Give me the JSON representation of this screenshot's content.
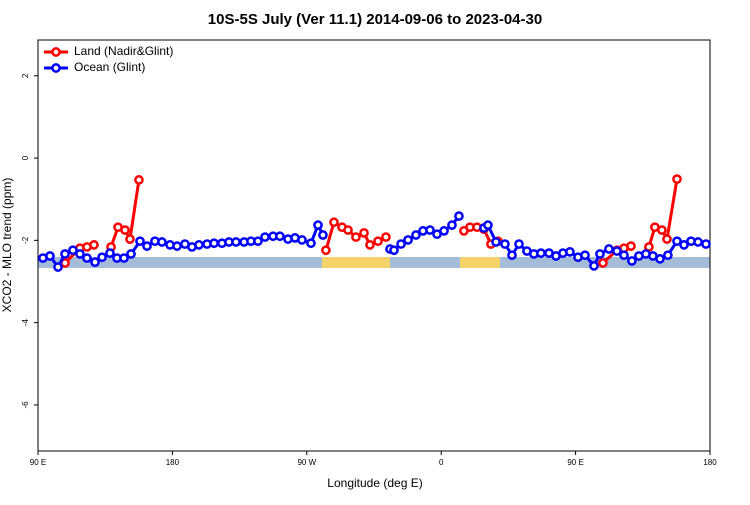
{
  "chart_data": {
    "type": "line",
    "title": "10S-5S July (Ver 11.1)   2014-09-06 to 2023-04-30",
    "x_label": "Longitude (deg E)",
    "y_label": "XCO2 - MLO trend (ppm)",
    "xlim": [
      90,
      540
    ],
    "xticks": [
      {
        "value": 90,
        "label": "90 E"
      },
      180,
      {
        "value": 270,
        "label": "90 W"
      },
      {
        "value": 360,
        "label": "0"
      },
      {
        "value": 450,
        "label": "90 E"
      },
      {
        "value": 540,
        "label": "180"
      }
    ],
    "ylim": [
      -7.12,
      2.87
    ],
    "yticks": [
      -6,
      -4,
      -2,
      0,
      2
    ],
    "legend": "top-left",
    "series": [
      {
        "name": "Land (Nadir&Glint)",
        "color": "#ff0000",
        "x": [
          108.1,
          118.1,
          122.8,
          127.5,
          null,
          138.9,
          143.6,
          148.3,
          151.6,
          157.6,
          null,
          282.8,
          288.2,
          293.6,
          297.6,
          302.9,
          308.3,
          312.3,
          317.7,
          323.0,
          null,
          375.2,
          379.3,
          384.0,
          388.6,
          393.3,
          398.0,
          null,
          468.3,
          477.7,
          482.4,
          487.1,
          null,
          499.1,
          503.1,
          507.8,
          511.2,
          517.9
        ],
        "values": [
          -2.55,
          -2.19,
          -2.16,
          -2.11,
          null,
          -2.16,
          -1.68,
          -1.75,
          -1.97,
          -0.53,
          null,
          -2.24,
          -1.56,
          -1.68,
          -1.75,
          -1.92,
          -1.82,
          -2.11,
          -2.02,
          -1.92,
          null,
          -1.77,
          -1.68,
          -1.68,
          -1.73,
          -2.09,
          -2.02,
          null,
          -2.55,
          -2.24,
          -2.19,
          -2.14,
          null,
          -2.16,
          -1.68,
          -1.75,
          -1.97,
          -0.51
        ]
      },
      {
        "name": "Ocean (Glint)",
        "color": "#0000ff",
        "x": [
          93.3,
          98.0,
          103.4,
          108.1,
          113.4,
          118.1,
          122.8,
          128.2,
          132.9,
          138.2,
          142.9,
          147.6,
          152.3,
          158.3,
          163.0,
          168.3,
          173.0,
          178.4,
          183.1,
          188.4,
          193.1,
          197.8,
          203.2,
          207.9,
          213.2,
          217.9,
          222.6,
          228.0,
          232.6,
          237.3,
          242.0,
          247.4,
          252.0,
          257.4,
          262.1,
          266.8,
          272.8,
          277.5,
          280.8,
          null,
          325.7,
          328.4,
          333.1,
          337.8,
          343.1,
          347.8,
          352.5,
          357.2,
          361.9,
          367.2,
          371.9,
          null,
          388.6,
          391.3,
          396.7,
          402.7,
          407.4,
          412.1,
          417.4,
          422.1,
          426.8,
          432.2,
          436.9,
          441.5,
          446.2,
          451.6,
          456.3,
          462.3,
          466.3,
          472.3,
          477.7,
          482.4,
          487.7,
          492.4,
          497.1,
          501.8,
          506.5,
          511.8,
          517.9,
          522.6,
          527.3,
          532.0,
          537.3
        ],
        "values": [
          -2.43,
          -2.38,
          -2.65,
          -2.33,
          -2.24,
          -2.33,
          -2.43,
          -2.53,
          -2.41,
          -2.31,
          -2.43,
          -2.43,
          -2.33,
          -2.02,
          -2.14,
          -2.02,
          -2.04,
          -2.11,
          -2.14,
          -2.09,
          -2.16,
          -2.11,
          -2.09,
          -2.07,
          -2.07,
          -2.04,
          -2.04,
          -2.04,
          -2.02,
          -2.02,
          -1.92,
          -1.9,
          -1.9,
          -1.97,
          -1.94,
          -1.99,
          -2.07,
          -1.63,
          -1.87,
          null,
          -2.21,
          -2.24,
          -2.09,
          -1.99,
          -1.87,
          -1.77,
          -1.75,
          -1.85,
          -1.77,
          -1.63,
          -1.41,
          null,
          -1.7,
          -1.63,
          -2.04,
          -2.09,
          -2.36,
          -2.09,
          -2.26,
          -2.33,
          -2.31,
          -2.31,
          -2.38,
          -2.31,
          -2.28,
          -2.41,
          -2.36,
          -2.62,
          -2.33,
          -2.21,
          -2.26,
          -2.36,
          -2.5,
          -2.38,
          -2.33,
          -2.38,
          -2.45,
          -2.36,
          -2.02,
          -2.11,
          -2.02,
          -2.04,
          -2.09
        ]
      }
    ]
  }
}
